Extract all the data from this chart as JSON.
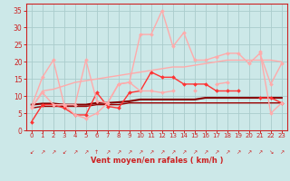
{
  "x": [
    0,
    1,
    2,
    3,
    4,
    5,
    6,
    7,
    8,
    9,
    10,
    11,
    12,
    13,
    14,
    15,
    16,
    17,
    18,
    19,
    20,
    21,
    22,
    23
  ],
  "series": [
    {
      "color": "#ff3333",
      "lw": 1.0,
      "marker": "D",
      "ms": 2.0,
      "y": [
        2.5,
        7.5,
        7.5,
        6.5,
        4.5,
        4.5,
        11.0,
        7.0,
        6.5,
        11.0,
        11.5,
        17.0,
        15.5,
        15.5,
        13.5,
        13.5,
        13.5,
        11.5,
        11.5,
        11.5,
        null,
        9.5,
        9.5,
        8.0
      ]
    },
    {
      "color": "#990000",
      "lw": 1.0,
      "marker": null,
      "ms": 0,
      "y": [
        6.5,
        7.0,
        7.0,
        7.0,
        7.0,
        7.0,
        7.5,
        7.5,
        7.5,
        8.0,
        8.0,
        8.0,
        8.0,
        8.0,
        8.0,
        8.0,
        8.0,
        8.0,
        8.0,
        8.0,
        8.0,
        8.0,
        8.0,
        8.0
      ]
    },
    {
      "color": "#880000",
      "lw": 1.5,
      "marker": null,
      "ms": 0,
      "y": [
        7.5,
        7.8,
        7.8,
        7.5,
        7.5,
        7.5,
        8.0,
        8.0,
        8.2,
        8.5,
        9.0,
        9.0,
        9.0,
        9.0,
        9.0,
        9.0,
        9.5,
        9.5,
        9.5,
        9.5,
        9.5,
        9.5,
        9.5,
        9.5
      ]
    },
    {
      "color": "#ffaaaa",
      "lw": 1.0,
      "marker": "D",
      "ms": 2.0,
      "y": [
        6.5,
        11.0,
        7.5,
        7.5,
        7.5,
        20.5,
        8.5,
        8.0,
        13.5,
        14.0,
        28.0,
        28.0,
        35.0,
        24.5,
        28.5,
        20.5,
        20.5,
        21.5,
        22.5,
        22.5,
        19.5,
        22.5,
        13.5,
        19.5
      ]
    },
    {
      "color": "#ffaaaa",
      "lw": 1.0,
      "marker": null,
      "ms": 0,
      "y": [
        6.5,
        11.5,
        12.0,
        13.0,
        14.0,
        14.5,
        15.0,
        15.5,
        16.0,
        16.5,
        17.0,
        17.5,
        18.0,
        18.5,
        18.5,
        19.0,
        19.5,
        20.0,
        20.5,
        20.5,
        20.5,
        20.5,
        20.5,
        20.0
      ]
    },
    {
      "color": "#ffaaaa",
      "lw": 1.0,
      "marker": "D",
      "ms": 2.0,
      "y": [
        7.0,
        15.5,
        20.5,
        7.5,
        4.5,
        3.5,
        5.0,
        8.0,
        13.5,
        14.0,
        11.5,
        11.5,
        11.0,
        11.5,
        null,
        11.5,
        null,
        13.5,
        14.0,
        null,
        null,
        23.0,
        5.0,
        8.0
      ]
    }
  ],
  "arrow_chars": [
    "↙",
    "↗",
    "↗",
    "↙",
    "↗",
    "↗",
    "↑",
    "↗",
    "↗",
    "↗",
    "↗",
    "↗",
    "↗",
    "↗",
    "↗",
    "↗",
    "↗",
    "↗",
    "↗",
    "↗",
    "↗",
    "↗",
    "↘",
    "↗"
  ],
  "xlabel": "Vent moyen/en rafales ( km/h )",
  "xlim": [
    -0.5,
    23.5
  ],
  "ylim": [
    0,
    37
  ],
  "yticks": [
    0,
    5,
    10,
    15,
    20,
    25,
    30,
    35
  ],
  "xticks": [
    0,
    1,
    2,
    3,
    4,
    5,
    6,
    7,
    8,
    9,
    10,
    11,
    12,
    13,
    14,
    15,
    16,
    17,
    18,
    19,
    20,
    21,
    22,
    23
  ],
  "bg_color": "#cce8e8",
  "grid_color": "#aacccc",
  "tick_color": "#cc2222",
  "label_color": "#cc2222"
}
